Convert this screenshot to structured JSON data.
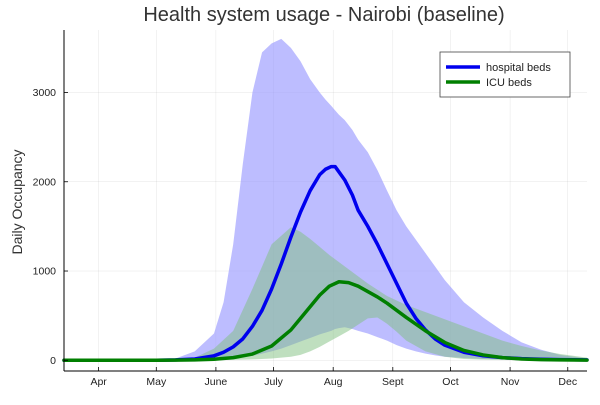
{
  "chart_data": {
    "type": "line",
    "title": "Health system usage - Nairobi (baseline)",
    "xlabel": "",
    "ylabel": "Daily Occupancy",
    "x_tick_labels": [
      "Apr",
      "May",
      "June",
      "July",
      "Aug",
      "Sept",
      "Oct",
      "Nov",
      "Dec"
    ],
    "x_tick_days": [
      0,
      30,
      61,
      91,
      122,
      153,
      183,
      214,
      244
    ],
    "y_ticks": [
      0,
      1000,
      2000,
      3000
    ],
    "xlim_days": [
      -18,
      254
    ],
    "ylim": [
      -120,
      3700
    ],
    "grid": true,
    "legend_position": "top-right",
    "colors": {
      "hospital": "#0000ee",
      "hospital_band": "#9999ff",
      "icu": "#007f00",
      "icu_band": "#7fbf7f"
    },
    "series": [
      {
        "name": "hospital beds",
        "x_days": [
          -18,
          20,
          30,
          40,
          50,
          60,
          65,
          70,
          75,
          80,
          85,
          90,
          95,
          100,
          105,
          110,
          115,
          118,
          121,
          123,
          125,
          128,
          132,
          135,
          140,
          145,
          150,
          155,
          160,
          165,
          170,
          175,
          180,
          190,
          200,
          210,
          220,
          230,
          240,
          254
        ],
        "values": [
          0,
          0,
          0,
          5,
          15,
          50,
          90,
          150,
          240,
          380,
          560,
          800,
          1080,
          1380,
          1660,
          1900,
          2080,
          2140,
          2170,
          2170,
          2110,
          2020,
          1850,
          1680,
          1500,
          1300,
          1080,
          860,
          640,
          470,
          340,
          240,
          170,
          90,
          50,
          30,
          18,
          12,
          8,
          5
        ],
        "band_lower": [
          0,
          0,
          0,
          0,
          0,
          5,
          10,
          20,
          35,
          50,
          75,
          100,
          130,
          170,
          210,
          250,
          290,
          310,
          330,
          350,
          360,
          370,
          350,
          330,
          300,
          260,
          220,
          170,
          130,
          100,
          75,
          55,
          40,
          25,
          15,
          10,
          6,
          4,
          3,
          2
        ],
        "band_upper": [
          0,
          0,
          0,
          20,
          100,
          300,
          650,
          1300,
          2200,
          3000,
          3450,
          3550,
          3600,
          3500,
          3350,
          3150,
          3000,
          2920,
          2850,
          2800,
          2750,
          2690,
          2580,
          2470,
          2330,
          2130,
          1900,
          1680,
          1500,
          1350,
          1200,
          1050,
          900,
          650,
          480,
          330,
          200,
          120,
          60,
          20
        ]
      },
      {
        "name": "ICU beds",
        "x_days": [
          -18,
          30,
          40,
          50,
          60,
          70,
          80,
          90,
          100,
          105,
          110,
          115,
          120,
          125,
          130,
          135,
          140,
          145,
          150,
          155,
          160,
          170,
          180,
          190,
          200,
          210,
          220,
          230,
          240,
          254
        ],
        "values": [
          0,
          0,
          2,
          5,
          12,
          30,
          70,
          160,
          340,
          470,
          600,
          730,
          830,
          880,
          870,
          830,
          770,
          710,
          640,
          560,
          480,
          330,
          200,
          110,
          60,
          30,
          15,
          8,
          4,
          2
        ],
        "band_lower": [
          0,
          0,
          0,
          0,
          0,
          5,
          10,
          20,
          40,
          60,
          100,
          150,
          210,
          270,
          330,
          400,
          470,
          480,
          410,
          320,
          220,
          100,
          40,
          15,
          8,
          4,
          2,
          1,
          0,
          0
        ],
        "band_upper": [
          0,
          0,
          10,
          30,
          130,
          330,
          800,
          1300,
          1490,
          1440,
          1360,
          1270,
          1180,
          1100,
          1020,
          940,
          860,
          790,
          720,
          670,
          620,
          540,
          460,
          380,
          300,
          220,
          160,
          110,
          70,
          30
        ]
      }
    ]
  }
}
